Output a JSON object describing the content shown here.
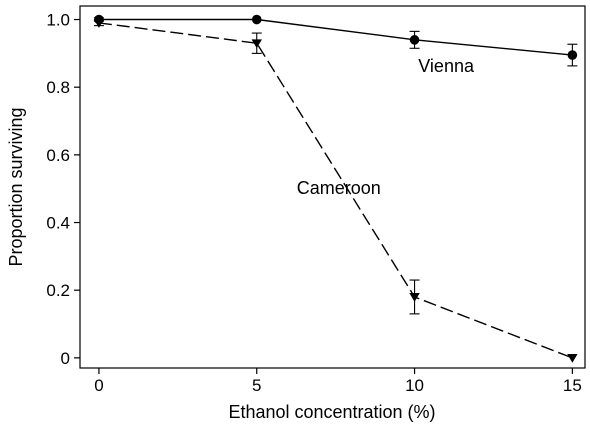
{
  "chart_data": {
    "type": "line",
    "title": "",
    "xlabel": "Ethanol concentration (%)",
    "ylabel": "Proportion surviving",
    "xlim": [
      -0.6,
      15.4
    ],
    "ylim": [
      -0.03,
      1.04
    ],
    "x_ticks": [
      0,
      5,
      10,
      15
    ],
    "y_ticks": [
      0,
      0.2,
      0.4,
      0.6,
      0.8,
      1.0
    ],
    "x_tick_labels": [
      "0",
      "5",
      "10",
      "15"
    ],
    "y_tick_labels": [
      "0",
      "0.2",
      "0.4",
      "0.6",
      "0.8",
      "1.0"
    ],
    "grid": false,
    "legend": "none",
    "series": [
      {
        "name": "Vienna",
        "marker": "circle",
        "line_style": "solid",
        "color": "#000000",
        "x": [
          0,
          5,
          10,
          15
        ],
        "y": [
          1.0,
          1.0,
          0.94,
          0.895
        ],
        "err": [
          0.005,
          0.0,
          0.025,
          0.032
        ]
      },
      {
        "name": "Cameroon",
        "marker": "triangle-down",
        "line_style": "dashed",
        "color": "#000000",
        "x": [
          0,
          5,
          10,
          15
        ],
        "y": [
          0.99,
          0.93,
          0.18,
          0.0
        ],
        "err": [
          0.008,
          0.03,
          0.05,
          0.0
        ]
      }
    ],
    "annotations": [
      {
        "text": "Vienna",
        "x": 11.0,
        "y": 0.845,
        "series": "Vienna"
      },
      {
        "text": "Cameroon",
        "x": 7.6,
        "y": 0.485,
        "series": "Cameroon"
      }
    ]
  }
}
